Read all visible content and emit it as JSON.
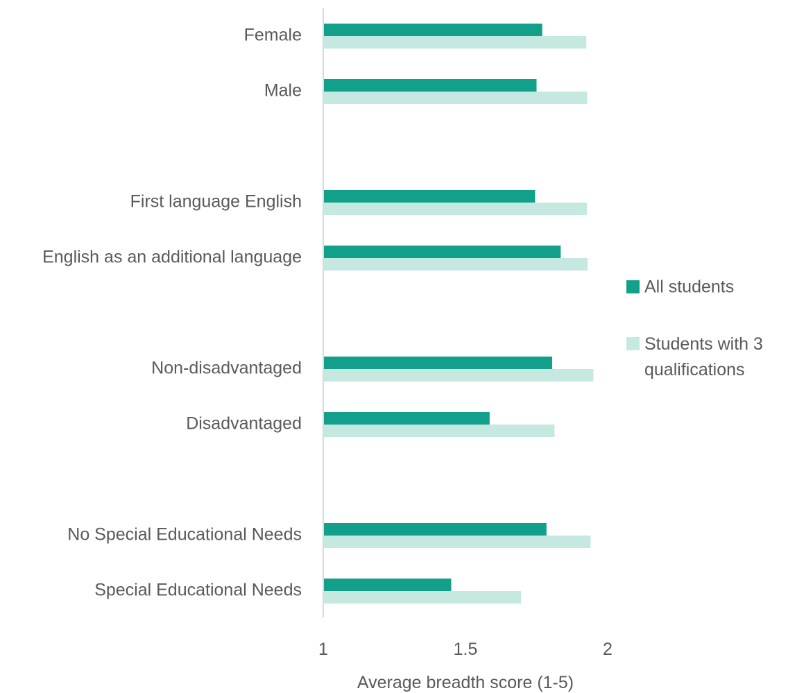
{
  "chart_data": {
    "type": "bar",
    "orientation": "horizontal",
    "categories": [
      "Female",
      "Male",
      "",
      "First language English",
      "English as an additional language",
      "",
      "Non-disadvantaged",
      "Disadvantaged",
      "",
      "No Special Educational Needs",
      "Special Educational Needs"
    ],
    "series": [
      {
        "name": "All students",
        "color": "#13a08a",
        "values": [
          1.77,
          1.75,
          null,
          1.745,
          1.835,
          null,
          1.805,
          1.585,
          null,
          1.785,
          1.45
        ]
      },
      {
        "name": "Students with 3 qualifications",
        "color": "#c5e8e1",
        "values": [
          1.925,
          1.928,
          null,
          1.927,
          1.93,
          null,
          1.95,
          1.813,
          null,
          1.94,
          1.696
        ]
      }
    ],
    "xlabel": "Average breadth score (1-5)",
    "ylabel": "",
    "xlim": [
      1,
      2
    ],
    "xticks": [
      "1",
      "1.5",
      "2"
    ],
    "grid": false,
    "legend_position": "right",
    "axis_color": "#d9d9d9"
  }
}
